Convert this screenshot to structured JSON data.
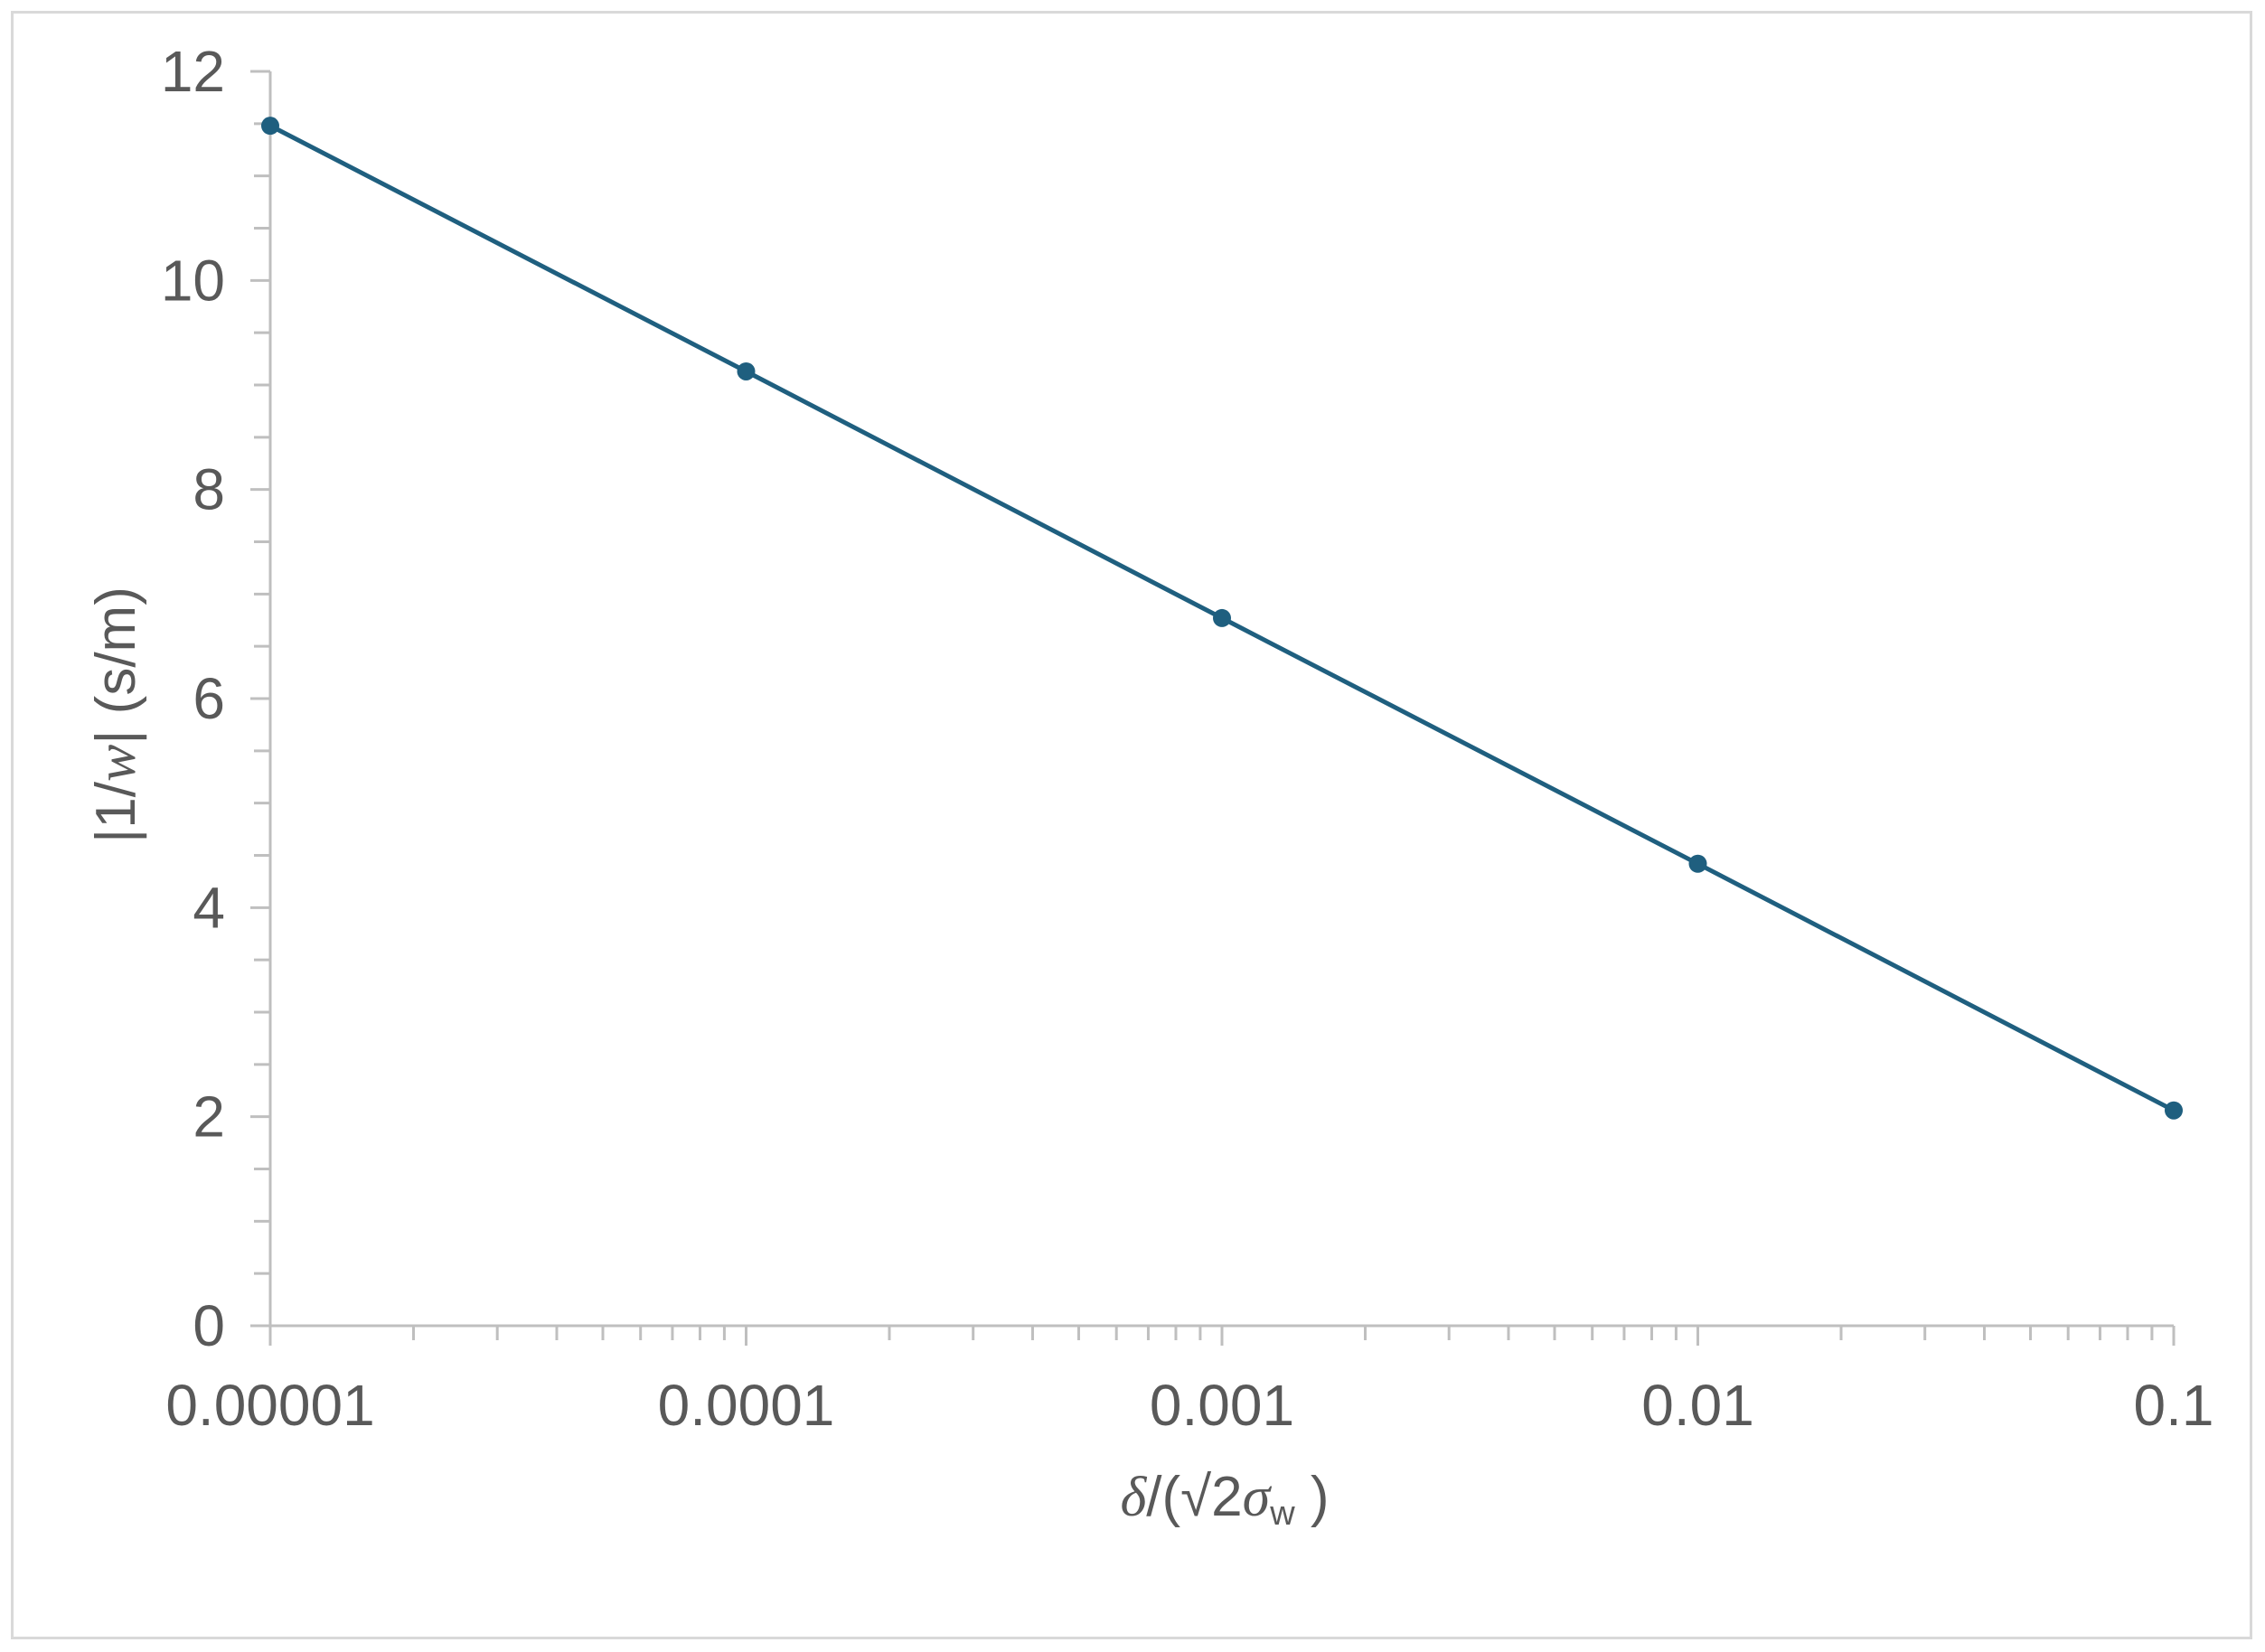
{
  "chart_data": {
    "type": "line",
    "title": "",
    "xscale": "log",
    "x": [
      1e-05,
      0.0001,
      0.001,
      0.01,
      0.1
    ],
    "xlim": [
      1e-05,
      0.1
    ],
    "xticks": [
      1e-05,
      0.0001,
      0.001,
      0.01,
      0.1
    ],
    "xtick_labels": [
      "0.00001",
      "0.0001",
      "0.001",
      "0.01",
      "0.1"
    ],
    "xlabel": {
      "delta": "δ",
      "open": "/(",
      "sqrt": "√",
      "two": "2",
      "sigma": "σ",
      "sub": "w",
      "close": " )"
    },
    "ylim": [
      0,
      12
    ],
    "yticks": [
      0,
      2,
      4,
      6,
      8,
      10,
      12
    ],
    "ytick_labels": [
      "0",
      "2",
      "4",
      "6",
      "8",
      "10",
      "12"
    ],
    "ylabel": {
      "pre": "|1/",
      "var": "w",
      "post": "| (s/m)"
    },
    "grid": false,
    "legend": "none",
    "series": [
      {
        "values": [
          11.48,
          9.13,
          6.77,
          4.42,
          2.06
        ],
        "color": "#1f5f7f"
      }
    ],
    "axis_color": "#bfbfbf",
    "text_color": "#595959"
  }
}
